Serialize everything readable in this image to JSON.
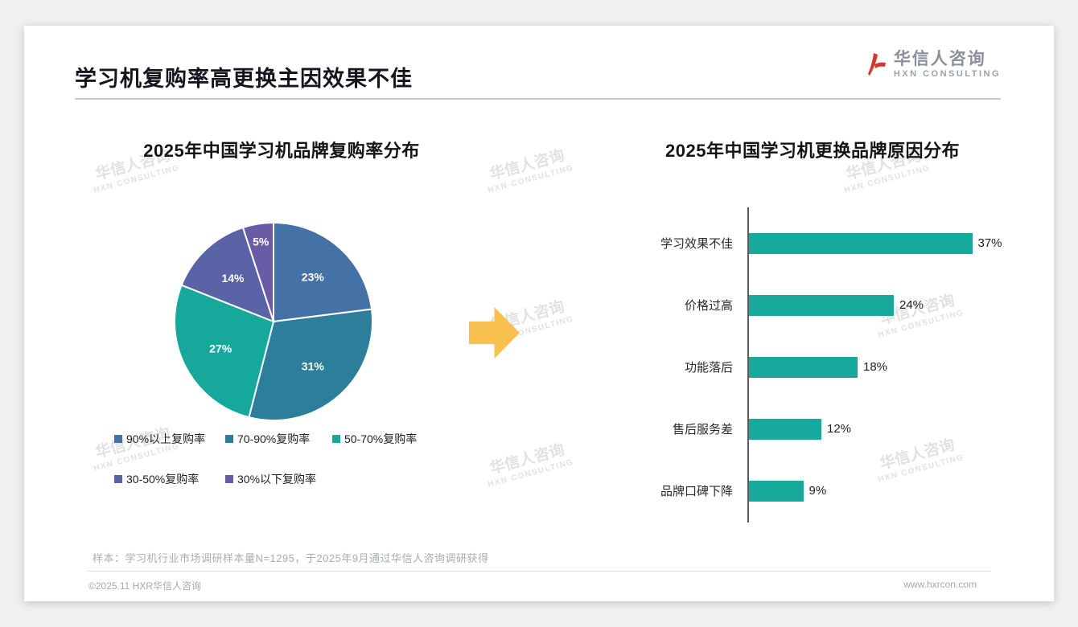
{
  "page": {
    "title": "学习机复购率高更换主因效果不佳",
    "footnote": "样本：学习机行业市场调研样本量N=1295，于2025年9月通过华信人咨询调研获得",
    "footer_left": "©2025.11 HXR华信人咨询",
    "footer_right": "www.hxrcon.com"
  },
  "logo": {
    "name": "华信人咨询",
    "subtitle": "HXN CONSULTING",
    "accent_color": "#d7342a"
  },
  "watermark": {
    "line1": "华信人咨询",
    "line2": "HXN CONSULTING"
  },
  "colors": {
    "teal": "#17a99b",
    "arrow_yellow": "#f8c14f",
    "title_dark": "#15151f"
  },
  "chart_data": [
    {
      "type": "pie",
      "title": "2025年中国学习机品牌复购率分布",
      "labels": [
        "90%以上复购率",
        "70-90%复购率",
        "50-70%复购率",
        "30-50%复购率",
        "30%以下复购率"
      ],
      "values": [
        23,
        31,
        27,
        14,
        5
      ],
      "value_labels": [
        "23%",
        "31%",
        "27%",
        "14%",
        "5%"
      ],
      "colors": [
        "#4472a6",
        "#2d7e9b",
        "#16a89a",
        "#5a63a6",
        "#6a5ba6"
      ],
      "legend_position": "bottom",
      "start_angle": "top",
      "direction": "clockwise"
    },
    {
      "type": "bar",
      "orientation": "horizontal",
      "title": "2025年中国学习机更换品牌原因分布",
      "categories": [
        "学习效果不佳",
        "价格过高",
        "功能落后",
        "售后服务差",
        "品牌口碑下降"
      ],
      "values": [
        37,
        24,
        18,
        12,
        9
      ],
      "value_labels": [
        "37%",
        "24%",
        "18%",
        "12%",
        "9%"
      ],
      "bar_color": "#17a99b",
      "xlim": [
        0,
        40
      ],
      "grid": false,
      "legend_position": "none"
    }
  ]
}
